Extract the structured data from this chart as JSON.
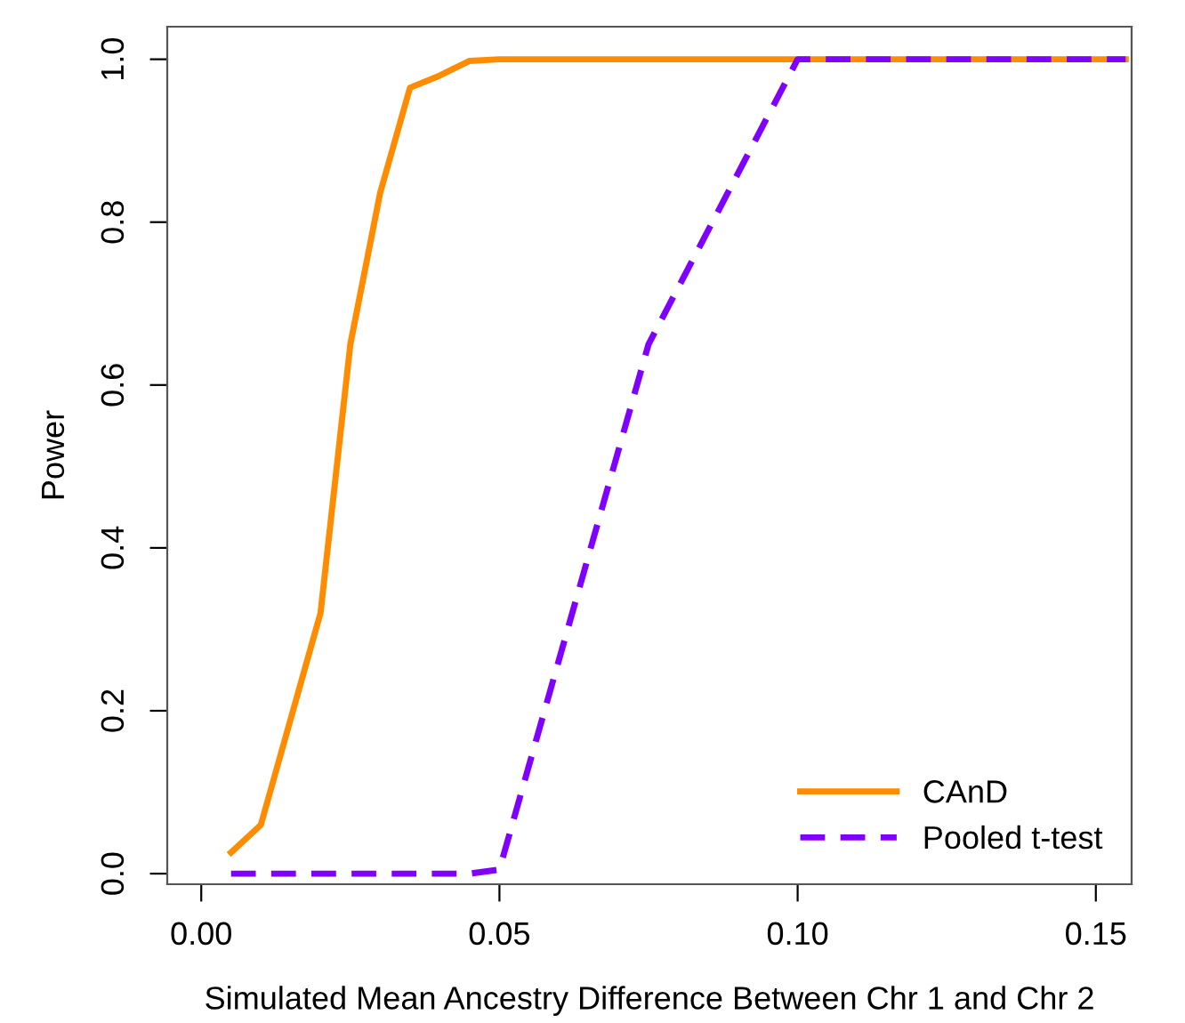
{
  "chart_data": {
    "type": "line",
    "xlabel": "Simulated Mean Ancestry Difference Between Chr 1 and Chr 2",
    "ylabel": "Power",
    "xlim": [
      -0.0057,
      0.156
    ],
    "ylim": [
      -0.013,
      1.04
    ],
    "xticks": [
      {
        "value": 0,
        "label": "0.00"
      },
      {
        "value": 0.05,
        "label": "0.05"
      },
      {
        "value": 0.1,
        "label": "0.10"
      },
      {
        "value": 0.15,
        "label": "0.15"
      }
    ],
    "yticks": [
      {
        "value": 0,
        "label": "0.0"
      },
      {
        "value": 0.2,
        "label": "0.2"
      },
      {
        "value": 0.4,
        "label": "0.4"
      },
      {
        "value": 0.6,
        "label": "0.6"
      },
      {
        "value": 0.8,
        "label": "0.8"
      },
      {
        "value": 1,
        "label": "1.0"
      }
    ],
    "grid": false,
    "legend": "bottom right",
    "series": [
      {
        "name": "CAnD",
        "color": "#ff8c00",
        "line_style": "solid",
        "x": [
          0.005,
          0.01,
          0.015,
          0.02,
          0.025,
          0.03,
          0.035,
          0.04,
          0.045,
          0.05,
          0.155
        ],
        "values": [
          0.026,
          0.06,
          0.19,
          0.32,
          0.65,
          0.836,
          0.965,
          0.98,
          0.998,
          1.0,
          1.0
        ]
      },
      {
        "name": "Pooled t-test",
        "color": "#8000ff",
        "line_style": "dashed",
        "x": [
          0.005,
          0.045,
          0.05,
          0.075,
          0.1,
          0.155
        ],
        "values": [
          0,
          0,
          0.005,
          0.65,
          1.0,
          1.0
        ]
      }
    ]
  }
}
